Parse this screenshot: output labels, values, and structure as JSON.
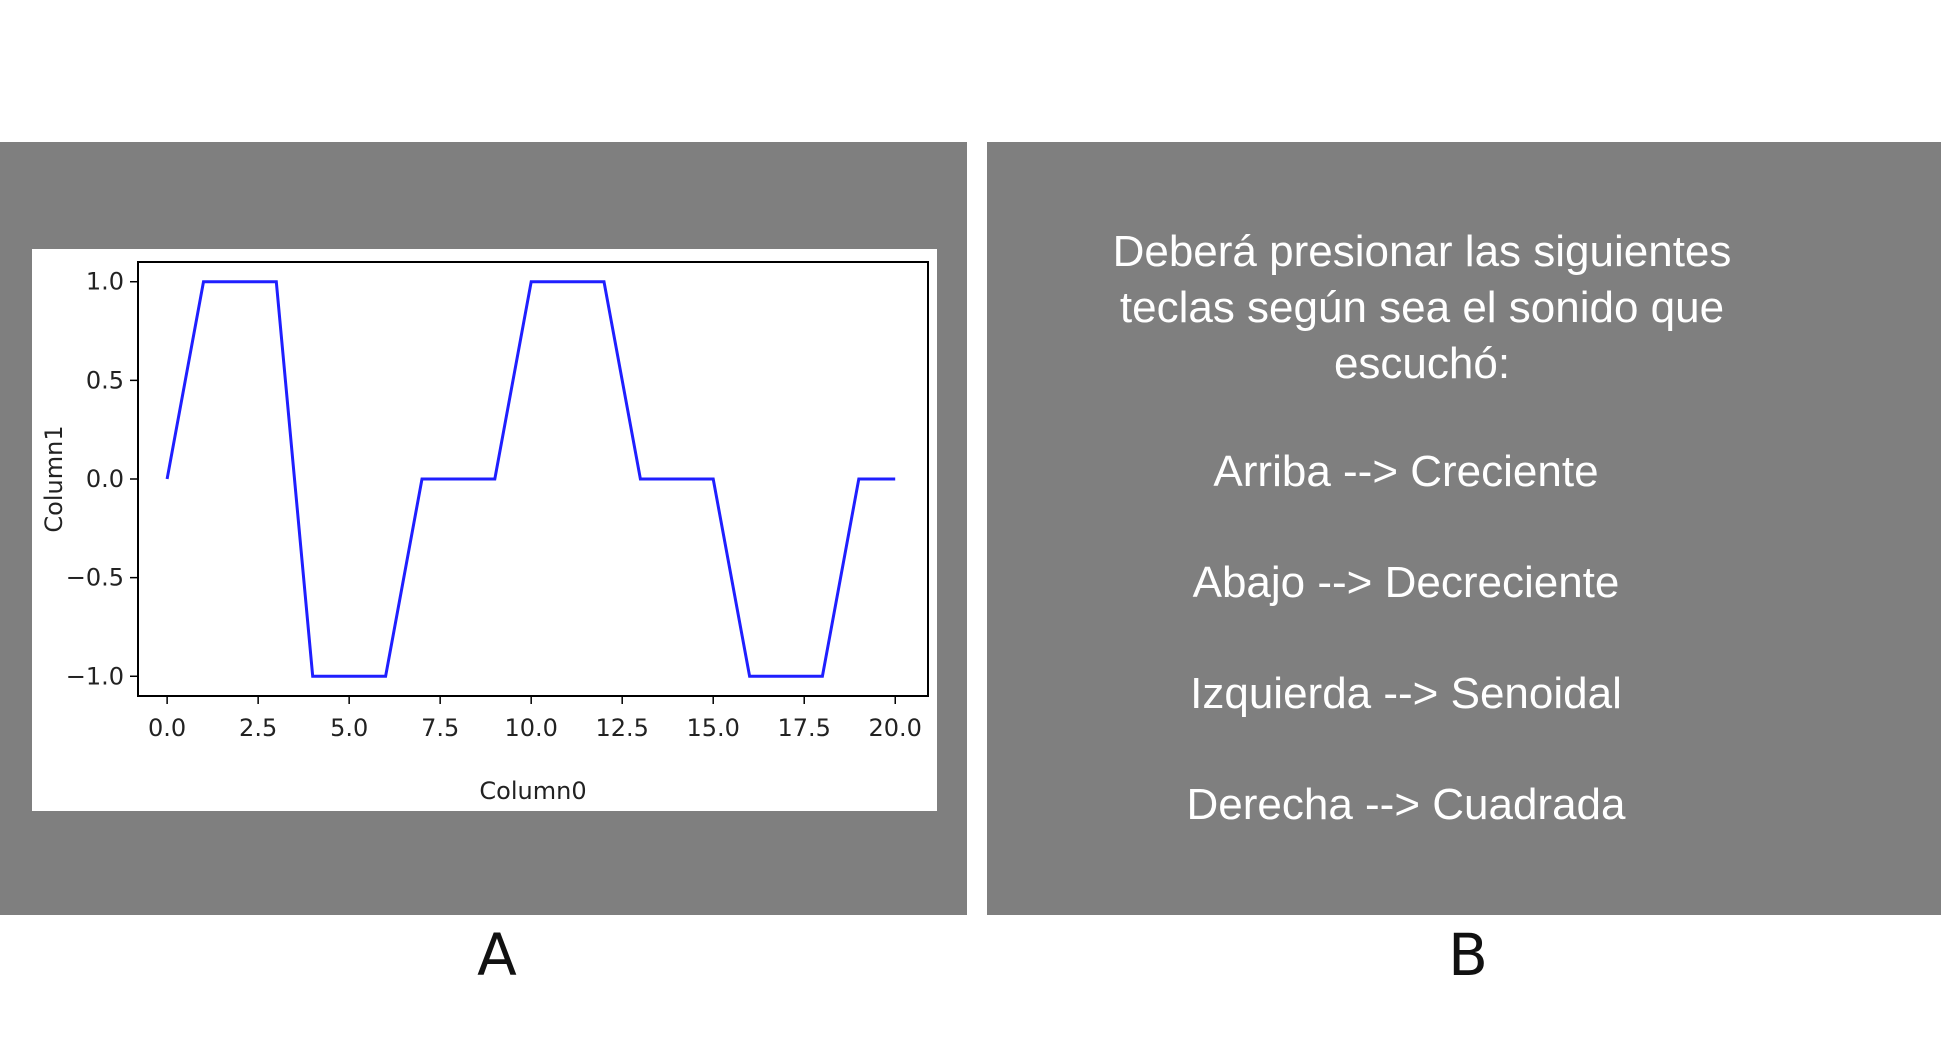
{
  "panel_a": {
    "label": "A",
    "chart_data": {
      "type": "line",
      "title": "",
      "xlabel": "Column0",
      "ylabel": "Column1",
      "xlim": [
        -0.8,
        20.9
      ],
      "ylim": [
        -1.1,
        1.1
      ],
      "xticks": [
        0.0,
        2.5,
        5.0,
        7.5,
        10.0,
        12.5,
        15.0,
        17.5,
        20.0
      ],
      "xtick_labels": [
        "0.0",
        "2.5",
        "5.0",
        "7.5",
        "10.0",
        "12.5",
        "15.0",
        "17.5",
        "20.0"
      ],
      "yticks": [
        1.0,
        0.5,
        0.0,
        -0.5,
        -1.0
      ],
      "ytick_labels": [
        "1.0",
        "0.5",
        "0.0",
        "−0.5",
        "−1.0"
      ],
      "grid": false,
      "series": [
        {
          "color": "#1f1fff",
          "x": [
            0,
            1,
            3,
            4,
            6,
            7,
            9,
            10,
            12,
            13,
            15,
            16,
            18,
            19,
            20
          ],
          "y": [
            0,
            1,
            1,
            -1,
            -1,
            0,
            0,
            1,
            1,
            0,
            0,
            -1,
            -1,
            0,
            0
          ]
        }
      ]
    }
  },
  "panel_b": {
    "label": "B",
    "intro": "Deberá presionar las siguientes teclas según sea el sonido que escuchó:",
    "rules": [
      "Arriba --> Creciente",
      "Abajo --> Decreciente",
      "Izquierda --> Senoidal",
      "Derecha --> Cuadrada"
    ]
  },
  "colors": {
    "panel_background": "#7f7f7f",
    "text_on_panel": "#ffffff",
    "line": "#1f1fff"
  }
}
